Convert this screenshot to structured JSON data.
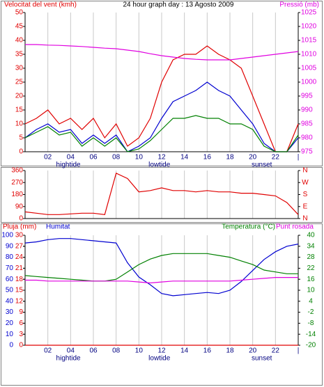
{
  "chart_data": [
    {
      "type": "line",
      "ylabel": "Velocitat del vent (kmh)",
      "title": "24 hour graph day : 13 Agosto 2009",
      "y2label": "Pressió (mb)",
      "x": [
        0,
        1,
        2,
        3,
        4,
        5,
        6,
        7,
        8,
        9,
        10,
        11,
        12,
        13,
        14,
        15,
        16,
        17,
        18,
        19,
        20,
        21,
        22,
        23,
        24
      ],
      "xlim": [
        0,
        24
      ],
      "xticks": [
        {
          "value": 2,
          "label": "02"
        },
        {
          "value": 4,
          "label": "04"
        },
        {
          "value": 6,
          "label": "06"
        },
        {
          "value": 8,
          "label": "08"
        },
        {
          "value": 10,
          "label": "10"
        },
        12,
        14,
        16,
        18,
        20,
        22,
        {
          "value": 24,
          "label": "|"
        }
      ],
      "ylim": [
        0,
        50
      ],
      "yticks": [
        0,
        5,
        10,
        15,
        20,
        25,
        30,
        35,
        40,
        45,
        50
      ],
      "ytick_color": "#e00000",
      "y2lim": [
        975,
        1025
      ],
      "y2ticks": [
        975,
        980,
        985,
        990,
        995,
        1000,
        1005,
        1010,
        1015,
        1020,
        1025
      ],
      "y2tick_color": "#e000e0",
      "grid": true,
      "annotations": [
        {
          "text": "hightide",
          "x": 3.8
        },
        {
          "text": "lowtide",
          "x": 11.8
        },
        {
          "text": "sunset",
          "x": 20.8
        }
      ],
      "series": [
        {
          "color": "#e00000",
          "values": [
            10,
            12,
            15,
            10,
            12,
            8,
            12,
            5,
            10,
            2,
            5,
            12,
            25,
            33,
            35,
            35,
            38,
            35,
            33,
            30,
            20,
            10,
            0,
            0,
            10
          ]
        },
        {
          "color": "#0000d0",
          "values": [
            5,
            8,
            10,
            7,
            8,
            3,
            6,
            3,
            6,
            0,
            2,
            5,
            12,
            18,
            20,
            22,
            25,
            22,
            20,
            15,
            10,
            3,
            0,
            0,
            5
          ]
        },
        {
          "color": "#008000",
          "values": [
            5,
            7,
            9,
            6,
            7,
            2,
            5,
            2,
            5,
            0,
            1,
            4,
            8,
            12,
            12,
            13,
            12,
            12,
            10,
            10,
            8,
            2,
            0,
            0,
            6
          ]
        },
        {
          "color": "#e000e0",
          "axis": "y2",
          "values": [
            1013.5,
            1013.5,
            1013.3,
            1013.2,
            1013,
            1012.8,
            1012.5,
            1012.2,
            1012,
            1011.5,
            1011,
            1010.2,
            1009.5,
            1009,
            1008.5,
            1008.2,
            1008,
            1008,
            1008,
            1008.5,
            1009,
            1009.5,
            1010,
            1010.5,
            1011
          ]
        }
      ]
    },
    {
      "type": "line",
      "x": [
        0,
        1,
        2,
        3,
        4,
        5,
        6,
        7,
        8,
        9,
        10,
        11,
        12,
        13,
        14,
        15,
        16,
        17,
        18,
        19,
        20,
        21,
        22,
        23,
        24
      ],
      "xlim": [
        0,
        24
      ],
      "ylim": [
        0,
        360
      ],
      "yticks": [
        0,
        90,
        180,
        270,
        360
      ],
      "ytick_color": "#e00000",
      "y2lim": [
        0,
        360
      ],
      "y2ticks": [
        {
          "value": 0,
          "label": "N"
        },
        {
          "value": 90,
          "label": "E"
        },
        {
          "value": 180,
          "label": "S"
        },
        {
          "value": 270,
          "label": "W"
        },
        {
          "value": 360,
          "label": "N"
        }
      ],
      "y2tick_color": "#e00000",
      "grid": true,
      "series": [
        {
          "color": "#e00000",
          "values": [
            50,
            40,
            30,
            30,
            35,
            40,
            40,
            30,
            340,
            300,
            200,
            210,
            230,
            210,
            210,
            200,
            210,
            200,
            200,
            190,
            190,
            180,
            170,
            120,
            30
          ]
        }
      ]
    },
    {
      "type": "line",
      "x": [
        0,
        1,
        2,
        3,
        4,
        5,
        6,
        7,
        8,
        9,
        10,
        11,
        12,
        13,
        14,
        15,
        16,
        17,
        18,
        19,
        20,
        21,
        22,
        23,
        24
      ],
      "xlim": [
        0,
        24
      ],
      "xticks": [
        {
          "value": 2,
          "label": "02"
        },
        {
          "value": 4,
          "label": "04"
        },
        {
          "value": 6,
          "label": "06"
        },
        {
          "value": 8,
          "label": "08"
        },
        {
          "value": 10,
          "label": "10"
        },
        12,
        14,
        16,
        18,
        20,
        22,
        {
          "value": 24,
          "label": "|"
        }
      ],
      "ylim": [
        0,
        100
      ],
      "yticks": [
        0,
        10,
        20,
        30,
        40,
        50,
        60,
        70,
        80,
        90,
        100
      ],
      "ytick_color": "#0000d0",
      "y3lim": [
        0,
        30
      ],
      "y3ticks": [
        0,
        3,
        6,
        9,
        12,
        15,
        18,
        21,
        24,
        27,
        30
      ],
      "y3tick_color": "#e00000",
      "y2lim": [
        -20,
        40
      ],
      "y2ticks": [
        -20,
        -14,
        -8,
        -2,
        4,
        10,
        16,
        22,
        28,
        34,
        40
      ],
      "y2tick_color": "#008000",
      "grid": true,
      "annotations": [
        {
          "text": "hightide",
          "x": 3.8
        },
        {
          "text": "lowtide",
          "x": 11.8
        },
        {
          "text": "sunset",
          "x": 20.8
        }
      ],
      "series": [
        {
          "name": "Pluja (mm)",
          "color": "#e00000",
          "axis": "y3",
          "values": [
            0,
            0,
            0,
            0,
            0,
            0,
            0,
            0,
            0,
            0,
            0,
            0,
            0,
            0,
            0,
            0,
            0,
            0,
            0,
            0,
            0,
            0,
            0,
            0,
            0
          ]
        },
        {
          "name": "Humitat",
          "color": "#0000d0",
          "values": [
            93,
            94,
            96,
            97,
            97,
            96,
            95,
            94,
            93,
            75,
            62,
            55,
            47,
            45,
            46,
            47,
            48,
            47,
            50,
            58,
            68,
            78,
            85,
            90,
            92
          ]
        },
        {
          "name": "Temperatura (°C)",
          "color": "#008000",
          "axis": "y2",
          "values": [
            18,
            17.5,
            17,
            16.5,
            16,
            15.5,
            15,
            15,
            16,
            20,
            24,
            27,
            29,
            30,
            30,
            30,
            30,
            29,
            28,
            26,
            24,
            21,
            20,
            19,
            19
          ]
        },
        {
          "name": "Punt rosada",
          "color": "#e000e0",
          "axis": "y2",
          "values": [
            15.5,
            15.5,
            15,
            15,
            15,
            15,
            15,
            15,
            15,
            15,
            14.5,
            14,
            14.5,
            15,
            15,
            15,
            15,
            15,
            15,
            15.5,
            16,
            16.5,
            17,
            17,
            17
          ]
        }
      ]
    }
  ]
}
